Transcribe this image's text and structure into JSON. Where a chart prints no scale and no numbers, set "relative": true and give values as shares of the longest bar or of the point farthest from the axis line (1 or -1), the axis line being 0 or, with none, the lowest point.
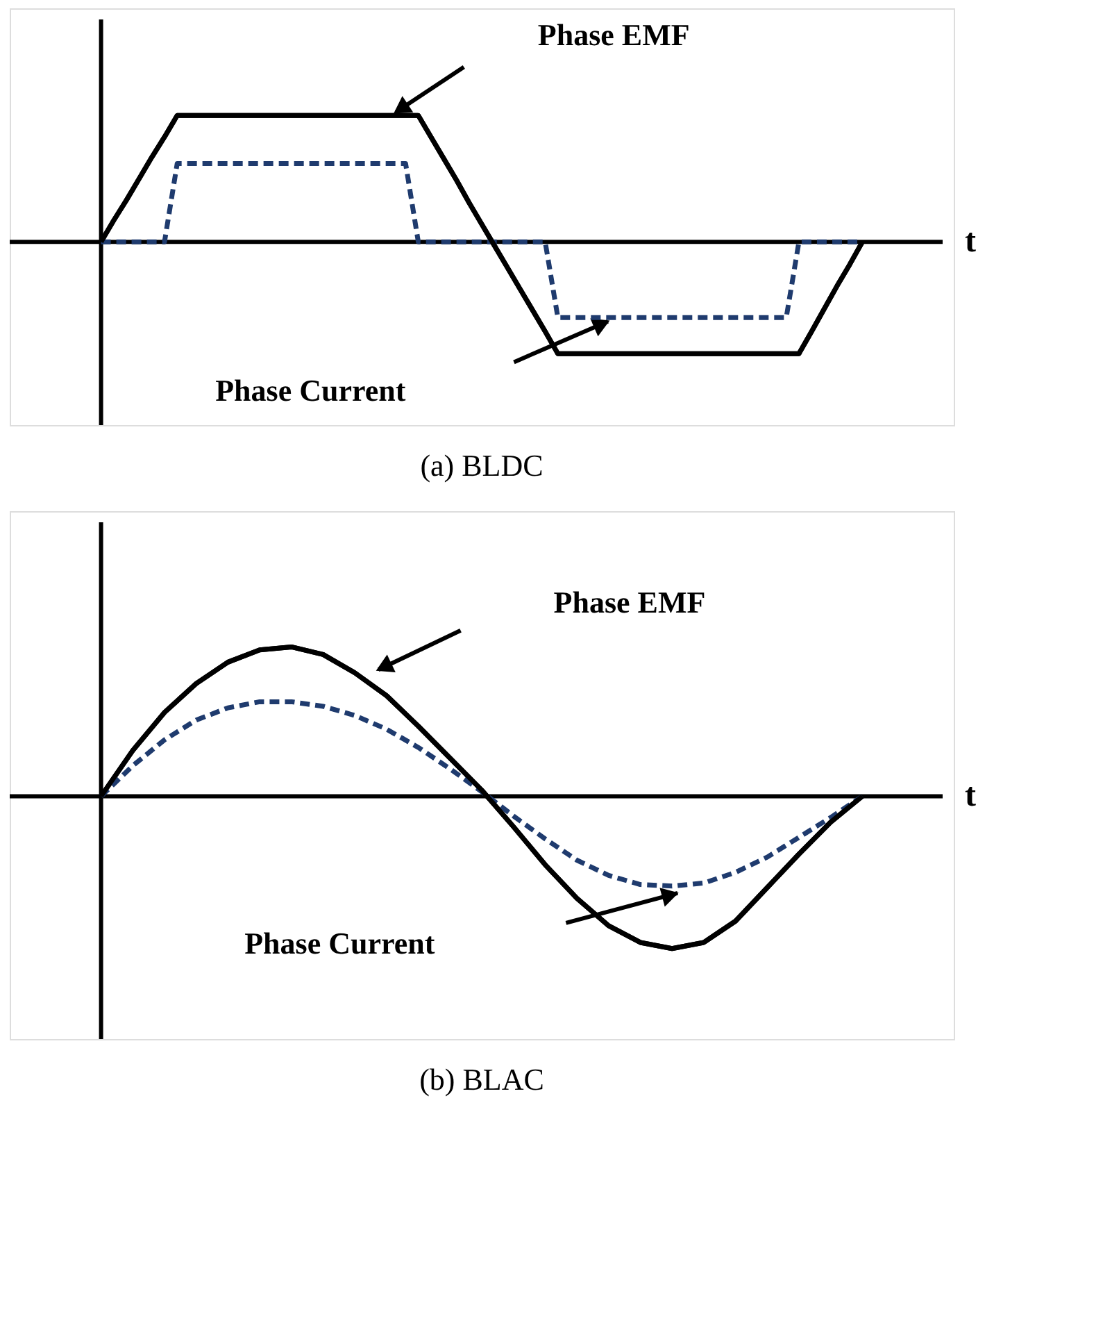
{
  "chart_data": [
    {
      "type": "line",
      "title": "(a)  BLDC",
      "xlabel": "t",
      "relative": true,
      "categories": [
        null,
        null,
        null,
        null,
        null,
        null,
        null,
        null,
        null,
        null,
        null,
        null,
        null,
        null,
        null,
        null,
        null,
        null,
        null,
        null,
        null,
        null,
        null,
        null,
        null,
        null,
        null,
        null,
        null,
        null,
        null,
        null,
        null,
        null,
        null,
        null,
        null,
        null,
        null,
        null,
        null,
        null,
        null,
        null,
        null,
        null,
        null,
        null,
        null,
        null,
        null,
        null,
        null,
        null,
        null,
        null,
        null,
        null,
        null,
        null,
        null
      ],
      "series": [
        {
          "color": "#000000",
          "line_style": "solid",
          "values": [
            0,
            0.17,
            0.33,
            0.5,
            0.67,
            0.83,
            1,
            1,
            1,
            1,
            1,
            1,
            1,
            1,
            1,
            1,
            1,
            1,
            1,
            1,
            1,
            1,
            1,
            1,
            1,
            1,
            0.83,
            0.66,
            0.49,
            0.31,
            0.14,
            -0.03,
            -0.2,
            -0.37,
            -0.54,
            -0.71,
            -0.885,
            -0.885,
            -0.885,
            -0.885,
            -0.885,
            -0.885,
            -0.885,
            -0.885,
            -0.885,
            -0.885,
            -0.885,
            -0.885,
            -0.885,
            -0.885,
            -0.885,
            -0.885,
            -0.885,
            -0.885,
            -0.885,
            -0.885,
            -0.71,
            -0.53,
            -0.35,
            -0.18,
            0
          ]
        },
        {
          "color": "#1f3b6e",
          "line_style": "dashed",
          "values": [
            0,
            0,
            0,
            0,
            0,
            0,
            0.62,
            0.62,
            0.62,
            0.62,
            0.62,
            0.62,
            0.62,
            0.62,
            0.62,
            0.62,
            0.62,
            0.62,
            0.62,
            0.62,
            0.62,
            0.62,
            0.62,
            0.62,
            0.62,
            0,
            0,
            0,
            0,
            0,
            0,
            0,
            0,
            0,
            0,
            0,
            -0.6,
            -0.6,
            -0.6,
            -0.6,
            -0.6,
            -0.6,
            -0.6,
            -0.6,
            -0.6,
            -0.6,
            -0.6,
            -0.6,
            -0.6,
            -0.6,
            -0.6,
            -0.6,
            -0.6,
            -0.6,
            -0.6,
            0,
            0,
            0,
            0,
            0,
            0
          ]
        }
      ],
      "annotations": [
        "Phase EMF",
        "Phase Current"
      ]
    },
    {
      "type": "line",
      "title": "(b) BLAC",
      "xlabel": "t",
      "relative": true,
      "categories": [
        null,
        null,
        null,
        null,
        null,
        null,
        null,
        null,
        null,
        null,
        null,
        null,
        null,
        null,
        null,
        null,
        null,
        null,
        null,
        null,
        null,
        null,
        null,
        null,
        null
      ],
      "series": [
        {
          "color": "#000000",
          "line_style": "solid",
          "values": [
            0,
            0.3,
            0.55,
            0.74,
            0.88,
            0.96,
            0.98,
            0.93,
            0.81,
            0.66,
            0.46,
            0.25,
            0.04,
            -0.2,
            -0.45,
            -0.67,
            -0.85,
            -0.96,
            -1.0,
            -0.96,
            -0.82,
            -0.6,
            -0.38,
            -0.17,
            0
          ]
        },
        {
          "color": "#1f3b6e",
          "line_style": "dashed",
          "values": [
            0,
            0.2,
            0.37,
            0.5,
            0.58,
            0.62,
            0.62,
            0.59,
            0.53,
            0.44,
            0.32,
            0.18,
            0.03,
            -0.13,
            -0.28,
            -0.42,
            -0.52,
            -0.58,
            -0.59,
            -0.57,
            -0.5,
            -0.4,
            -0.27,
            -0.14,
            0
          ]
        }
      ],
      "annotations": [
        "Phase EMF",
        "Phase Current"
      ]
    }
  ]
}
